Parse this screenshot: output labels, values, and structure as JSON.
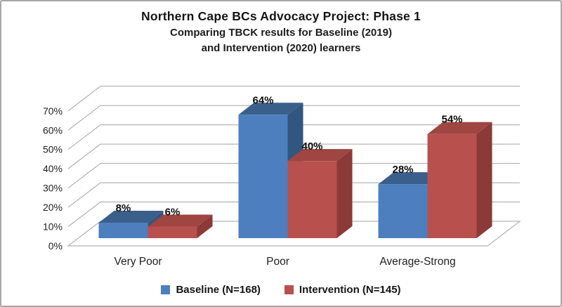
{
  "chart_data": {
    "type": "bar",
    "style": "3d-clustered-column",
    "title": "Northern Cape BCs Advocacy Project: Phase 1",
    "subtitle": [
      "Comparing TBCK results for Baseline (2019)",
      "and Intervention (2020) learners"
    ],
    "categories": [
      "Very Poor",
      "Poor",
      "Average-Strong"
    ],
    "series": [
      {
        "name": "Baseline (N=168)",
        "values": [
          8,
          64,
          28
        ],
        "color_front": "#4d7fbe",
        "color_top": "#3a5f8b",
        "color_side": "#33567e"
      },
      {
        "name": "Intervention (N=145)",
        "values": [
          6,
          40,
          54
        ],
        "color_front": "#b8504d",
        "color_top": "#9f4542",
        "color_side": "#8c3a37"
      }
    ],
    "data_label_suffix": "%",
    "ylim": [
      0,
      70
    ],
    "ytick_step": 10,
    "ytick_labels": [
      "0%",
      "10%",
      "20%",
      "30%",
      "40%",
      "50%",
      "60%",
      "70%"
    ],
    "grid": true,
    "grid_color": "#a2a2a2",
    "legend_position": "bottom"
  }
}
